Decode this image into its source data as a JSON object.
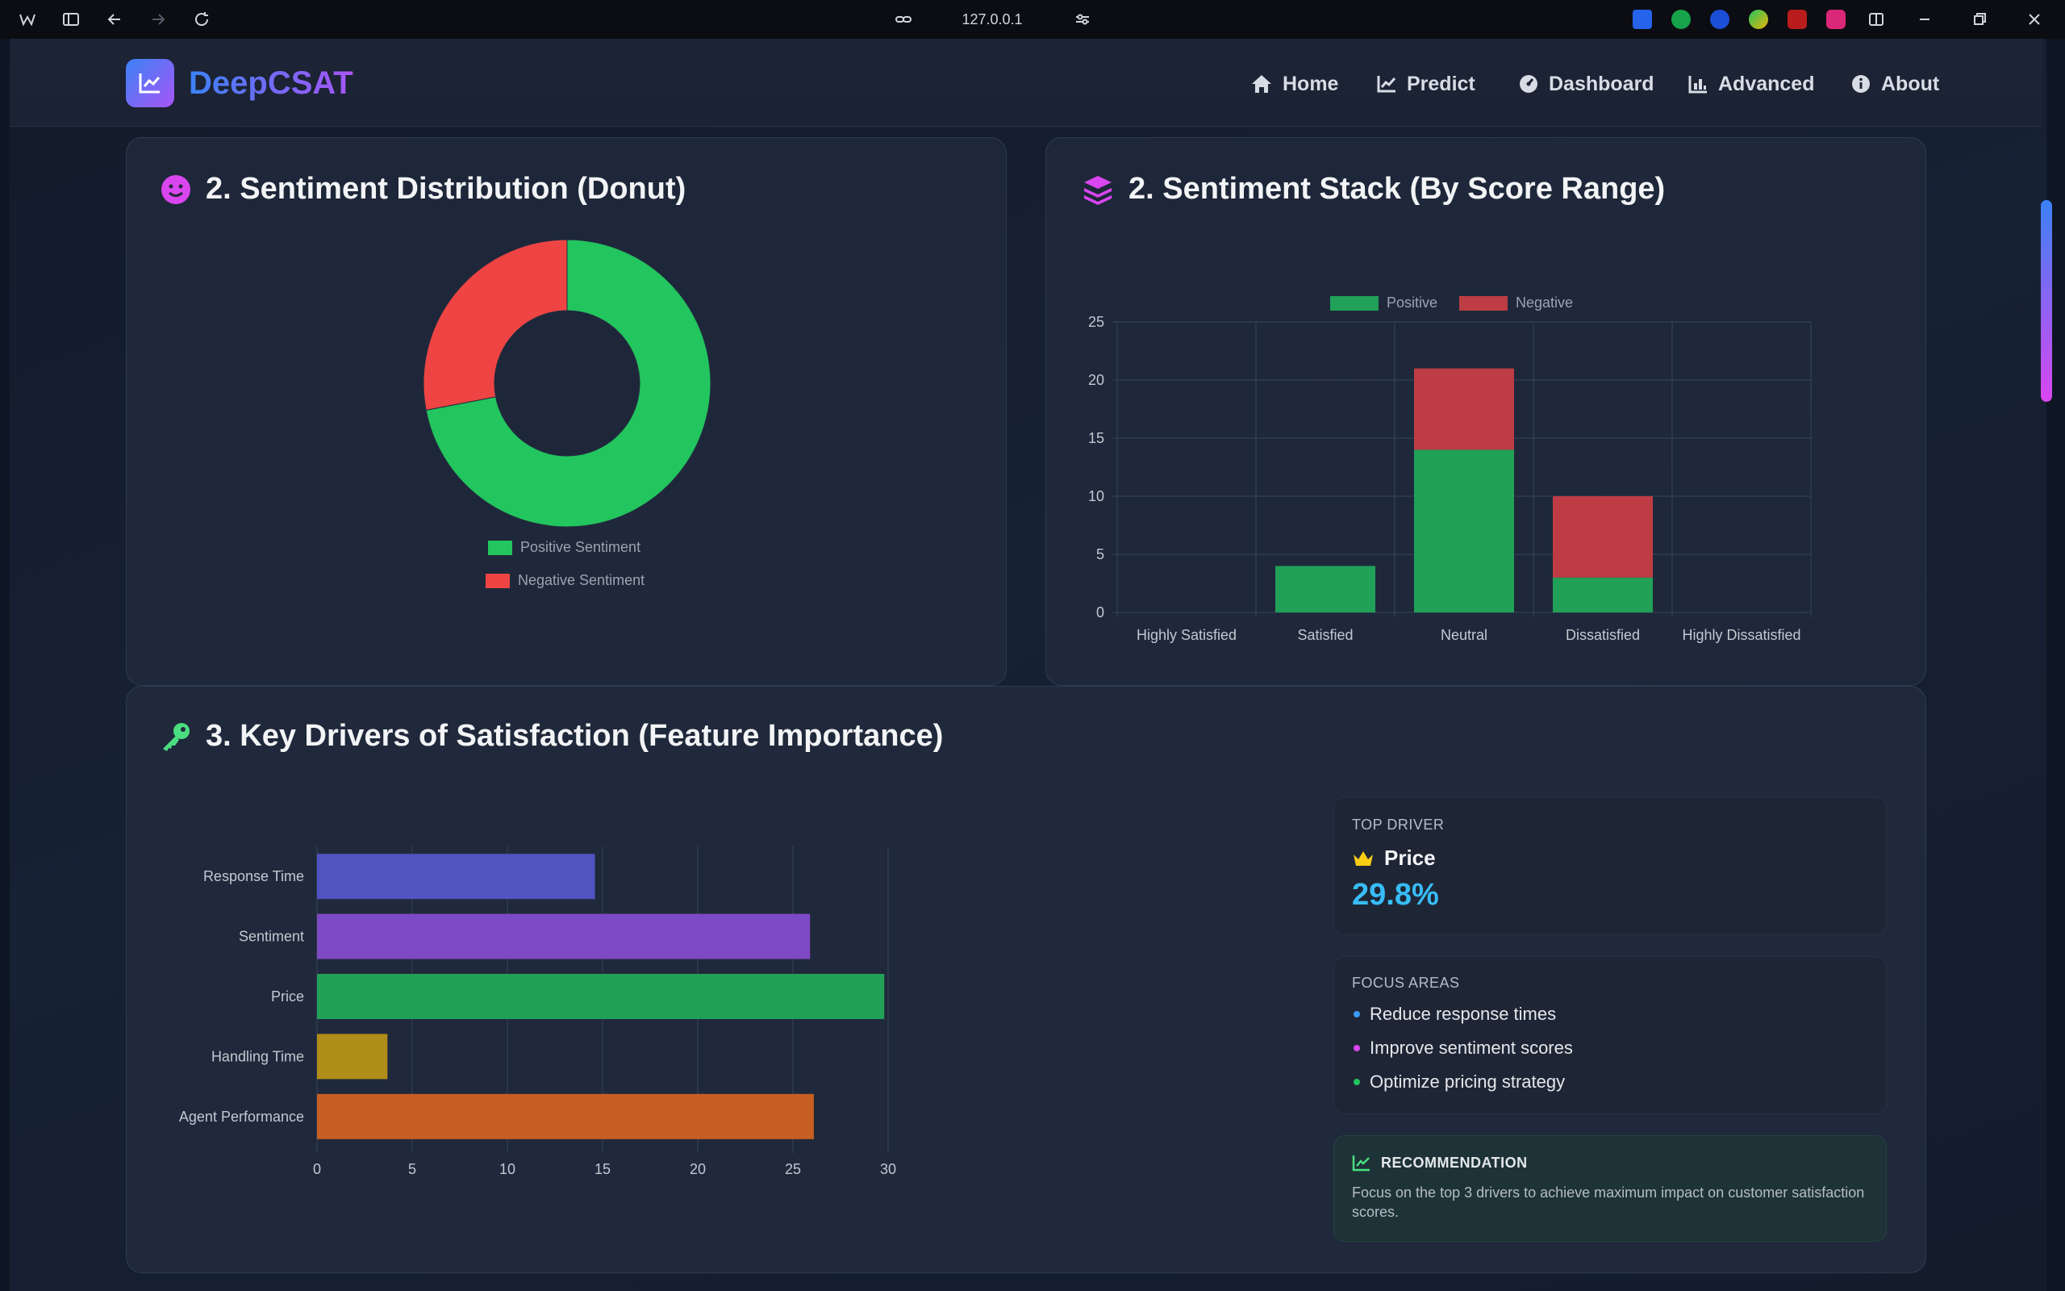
{
  "browser": {
    "url": "127.0.0.1"
  },
  "navbar": {
    "brand": "DeepCSAT",
    "items": [
      {
        "label": "Home",
        "icon": "home-icon"
      },
      {
        "label": "Predict",
        "icon": "chart-line-icon"
      },
      {
        "label": "Dashboard",
        "icon": "gauge-icon"
      },
      {
        "label": "Advanced",
        "icon": "bar-chart-icon"
      },
      {
        "label": "About",
        "icon": "info-icon"
      }
    ]
  },
  "donut_card": {
    "title": "2. Sentiment Distribution (Donut)",
    "icon": "smile-icon"
  },
  "stack_card": {
    "title": "2. Sentiment Stack (By Score Range)",
    "icon": "layers-icon"
  },
  "drivers_card": {
    "title": "3. Key Drivers of Satisfaction (Feature Importance)",
    "icon": "key-icon"
  },
  "top_driver": {
    "label": "TOP DRIVER",
    "name": "Price",
    "value": "29.8%",
    "icon": "crown-icon"
  },
  "focus_areas": {
    "label": "FOCUS AREAS",
    "items": [
      {
        "text": "Reduce response times",
        "color": "#3b9cf6"
      },
      {
        "text": "Improve sentiment scores",
        "color": "#d946ef"
      },
      {
        "text": "Optimize pricing strategy",
        "color": "#22c55e"
      }
    ]
  },
  "recommendation": {
    "label": "RECOMMENDATION",
    "text": "Focus on the top 3 drivers to achieve maximum impact on customer satisfaction scores.",
    "icon": "trend-icon"
  },
  "chart_data": [
    {
      "type": "pie",
      "variant": "donut",
      "title": "",
      "labels": [
        "Positive Sentiment",
        "Negative Sentiment"
      ],
      "values": [
        72,
        28
      ],
      "colors": [
        "#22c55e",
        "#ef4444"
      ],
      "legend": "bottom"
    },
    {
      "type": "bar",
      "stacked": true,
      "title": "",
      "categories": [
        "Highly Satisfied",
        "Satisfied",
        "Neutral",
        "Dissatisfied",
        "Highly Dissatisfied"
      ],
      "series": [
        {
          "name": "Positive",
          "values": [
            0,
            4,
            14,
            3,
            0
          ],
          "color": "#21a058"
        },
        {
          "name": "Negative",
          "values": [
            0,
            0,
            7,
            7,
            0
          ],
          "color": "#be3d45"
        }
      ],
      "ylim": [
        0,
        25
      ],
      "yticks": [
        0,
        5,
        10,
        15,
        20,
        25
      ],
      "grid": true,
      "legend": "top"
    },
    {
      "type": "bar",
      "orientation": "horizontal",
      "title": "",
      "categories": [
        "Response Time",
        "Sentiment",
        "Price",
        "Handling Time",
        "Agent Performance"
      ],
      "values": [
        14.6,
        25.9,
        29.8,
        3.7,
        26.1
      ],
      "colors": [
        "#5054c0",
        "#7e49c4",
        "#21a058",
        "#b08c18",
        "#c75f22"
      ],
      "xlim": [
        0,
        30
      ],
      "xticks": [
        0,
        5,
        10,
        15,
        20,
        25,
        30
      ],
      "grid": true
    }
  ]
}
